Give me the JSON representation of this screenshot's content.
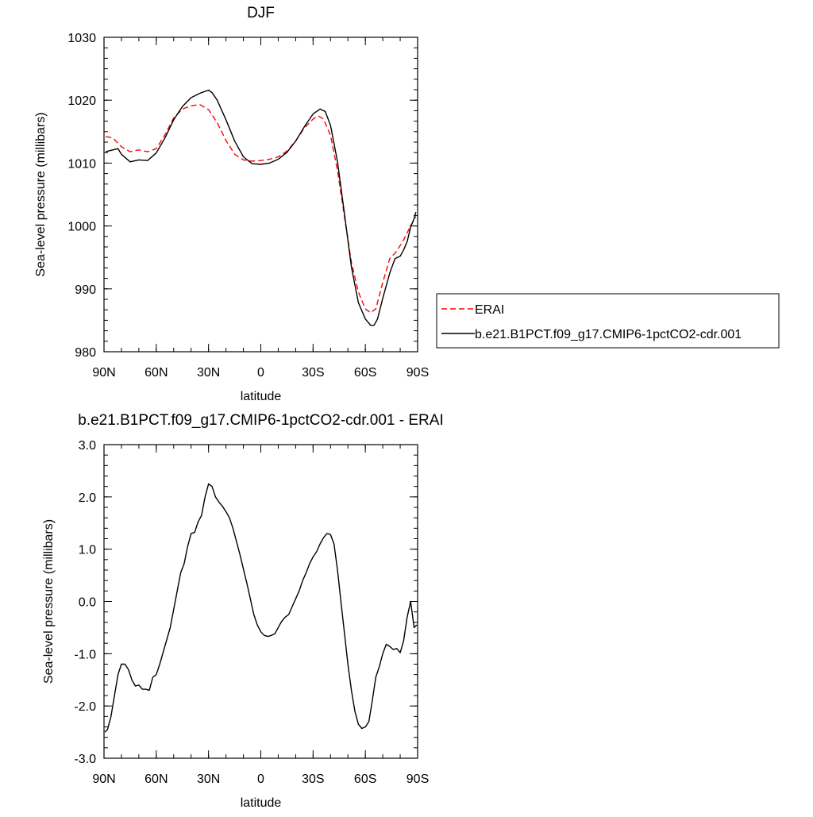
{
  "chart_data": [
    {
      "type": "line",
      "title": "DJF",
      "xlabel": "latitude",
      "ylabel": "Sea-level pressure (millibars)",
      "xlim": [
        90,
        -90
      ],
      "ylim": [
        980,
        1030
      ],
      "xticks": [
        90,
        60,
        30,
        0,
        -30,
        -60,
        -90
      ],
      "xtick_labels": [
        "90N",
        "60N",
        "30N",
        "0",
        "30S",
        "60S",
        "90S"
      ],
      "yticks": [
        980,
        990,
        1000,
        1010,
        1020,
        1030
      ],
      "ytick_labels": [
        "980",
        "990",
        "1000",
        "1010",
        "1020",
        "1030"
      ],
      "legend_position": "right",
      "series": [
        {
          "name": "ERAI",
          "color": "#ff0000",
          "dash": "dashed",
          "x": [
            89,
            85,
            80,
            75,
            70,
            65,
            60,
            55,
            50,
            45,
            40,
            35,
            30,
            25,
            20,
            15,
            10,
            5,
            0,
            -5,
            -10,
            -15,
            -20,
            -25,
            -30,
            -33,
            -36,
            -40,
            -44,
            -48,
            -52,
            -56,
            -60,
            -63,
            -66,
            -70,
            -74,
            -78,
            -82,
            -86,
            -89
          ],
          "y": [
            1014.2,
            1014.0,
            1012.6,
            1011.8,
            1012.1,
            1011.8,
            1012.3,
            1014.5,
            1017.2,
            1018.6,
            1019.1,
            1019.3,
            1018.5,
            1016.4,
            1013.6,
            1011.4,
            1010.5,
            1010.3,
            1010.4,
            1010.6,
            1011.0,
            1011.9,
            1013.5,
            1015.6,
            1017.0,
            1017.5,
            1017.0,
            1014.4,
            1008.8,
            1001.5,
            994.2,
            989.5,
            986.8,
            986.2,
            986.8,
            991.0,
            994.8,
            996.0,
            997.8,
            1000.0,
            1001.5
          ]
        },
        {
          "name": "b.e21.B1PCT.f09_g17.CMIP6-1pctCO2-cdr.001",
          "color": "#000000",
          "dash": "solid",
          "x": [
            89,
            85,
            82,
            80,
            75,
            70,
            65,
            60,
            55,
            50,
            45,
            40,
            35,
            30,
            28,
            25,
            20,
            15,
            10,
            5,
            0,
            -5,
            -10,
            -15,
            -20,
            -25,
            -30,
            -34,
            -37,
            -40,
            -44,
            -48,
            -52,
            -56,
            -60,
            -63,
            -65,
            -67,
            -70,
            -74,
            -77,
            -80,
            -82,
            -84,
            -86,
            -88,
            -89
          ],
          "y": [
            1011.8,
            1012.1,
            1012.3,
            1011.4,
            1010.2,
            1010.5,
            1010.4,
            1011.6,
            1014.0,
            1016.9,
            1019.0,
            1020.4,
            1021.1,
            1021.6,
            1021.2,
            1020.0,
            1016.9,
            1013.5,
            1011.0,
            1009.9,
            1009.8,
            1010.0,
            1010.6,
            1011.7,
            1013.5,
            1015.8,
            1017.8,
            1018.6,
            1018.2,
            1016.0,
            1010.2,
            1002.0,
            993.5,
            987.8,
            985.2,
            984.2,
            984.2,
            985.2,
            988.5,
            992.5,
            994.8,
            995.2,
            996.2,
            997.5,
            999.8,
            1001.2,
            1002.2
          ]
        }
      ]
    },
    {
      "type": "line",
      "title": "b.e21.B1PCT.f09_g17.CMIP6-1pctCO2-cdr.001 - ERAI",
      "xlabel": "latitude",
      "ylabel": "Sea-level pressure (millibars)",
      "xlim": [
        90,
        -90
      ],
      "ylim": [
        -3.0,
        3.0
      ],
      "xticks": [
        90,
        60,
        30,
        0,
        -30,
        -60,
        -90
      ],
      "xtick_labels": [
        "90N",
        "60N",
        "30N",
        "0",
        "30S",
        "60S",
        "90S"
      ],
      "yticks": [
        -3.0,
        -2.0,
        -1.0,
        0.0,
        1.0,
        2.0,
        3.0
      ],
      "ytick_labels": [
        "-3.0",
        "-2.0",
        "-1.0",
        "0.0",
        "1.0",
        "2.0",
        "3.0"
      ],
      "series": [
        {
          "color": "#000000",
          "dash": "solid",
          "x": [
            89.5,
            88,
            86,
            84,
            82,
            80,
            78,
            76,
            74,
            72,
            70,
            68,
            66,
            64,
            62,
            60,
            58,
            55,
            52,
            50,
            48,
            46,
            44,
            42,
            40,
            38,
            36,
            34,
            32,
            30,
            28,
            26,
            24,
            22,
            20,
            18,
            16,
            14,
            12,
            10,
            8,
            6,
            4,
            2,
            0,
            -2,
            -4,
            -6,
            -8,
            -10,
            -12,
            -14,
            -16,
            -18,
            -20,
            -22,
            -24,
            -26,
            -28,
            -30,
            -32,
            -34,
            -36,
            -38,
            -40,
            -42,
            -44,
            -46,
            -48,
            -50,
            -52,
            -54,
            -56,
            -58,
            -60,
            -62,
            -64,
            -66,
            -68,
            -70,
            -72,
            -74,
            -76,
            -78,
            -80,
            -82,
            -84,
            -86,
            -88,
            -89.5
          ],
          "y": [
            -2.5,
            -2.45,
            -2.2,
            -1.8,
            -1.4,
            -1.2,
            -1.2,
            -1.3,
            -1.5,
            -1.62,
            -1.6,
            -1.68,
            -1.68,
            -1.7,
            -1.45,
            -1.4,
            -1.2,
            -0.85,
            -0.5,
            -0.15,
            0.2,
            0.55,
            0.72,
            1.05,
            1.3,
            1.32,
            1.52,
            1.65,
            2.0,
            2.25,
            2.2,
            2.0,
            1.9,
            1.82,
            1.72,
            1.6,
            1.4,
            1.15,
            0.9,
            0.62,
            0.35,
            0.05,
            -0.25,
            -0.45,
            -0.58,
            -0.65,
            -0.67,
            -0.65,
            -0.62,
            -0.5,
            -0.38,
            -0.3,
            -0.25,
            -0.1,
            0.05,
            0.2,
            0.4,
            0.55,
            0.72,
            0.85,
            0.95,
            1.1,
            1.22,
            1.3,
            1.28,
            1.1,
            0.6,
            0.0,
            -0.6,
            -1.2,
            -1.7,
            -2.1,
            -2.35,
            -2.43,
            -2.4,
            -2.3,
            -1.9,
            -1.45,
            -1.25,
            -1.0,
            -0.82,
            -0.86,
            -0.92,
            -0.9,
            -0.98,
            -0.75,
            -0.3,
            0.0,
            -0.5,
            -0.45
          ]
        }
      ]
    }
  ]
}
